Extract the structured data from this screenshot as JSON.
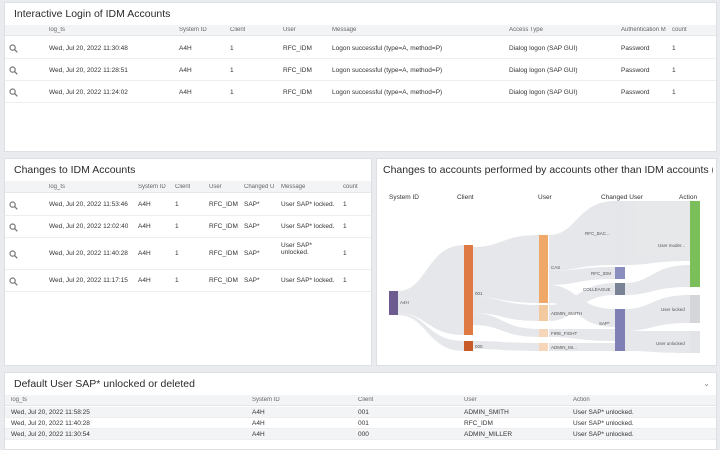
{
  "panel1": {
    "title": "Interactive Login of IDM Accounts",
    "headers": [
      "log_ts",
      "System ID",
      "Client",
      "User",
      "Message",
      "Access Type",
      "Authentication M",
      "count"
    ],
    "rows": [
      [
        "Wed, Jul 20, 2022 11:30:48",
        "A4H",
        "1",
        "RFC_IDM",
        "Logon successful (type=A, method=P)",
        "Dialog logon (SAP GUI)",
        "Password",
        "1"
      ],
      [
        "Wed, Jul 20, 2022 11:28:51",
        "A4H",
        "1",
        "RFC_IDM",
        "Logon successful (type=A, method=P)",
        "Dialog logon (SAP GUI)",
        "Password",
        "1"
      ],
      [
        "Wed, Jul 20, 2022 11:24:02",
        "A4H",
        "1",
        "RFC_IDM",
        "Logon successful (type=A, method=P)",
        "Dialog logon (SAP GUI)",
        "Password",
        "1"
      ]
    ]
  },
  "panel2": {
    "title": "Changes to IDM Accounts",
    "headers": [
      "log_ts",
      "System ID",
      "Client",
      "User",
      "Changed U",
      "Message",
      "count"
    ],
    "rows": [
      [
        "Wed, Jul 20, 2022 11:53:46",
        "A4H",
        "1",
        "RFC_IDM",
        "SAP*",
        "User SAP* locked.",
        "1"
      ],
      [
        "Wed, Jul 20, 2022 12:02:40",
        "A4H",
        "1",
        "RFC_IDM",
        "SAP*",
        "User SAP* locked.",
        "1"
      ],
      [
        "Wed, Jul 20, 2022 11:40:28",
        "A4H",
        "1",
        "RFC_IDM",
        "SAP*",
        "User SAP* unlocked.",
        "1"
      ],
      [
        "Wed, Jul 20, 2022 11:17:15",
        "A4H",
        "1",
        "RFC_IDM",
        "SAP*",
        "User SAP* locked.",
        "1"
      ]
    ]
  },
  "panel3": {
    "title": "Changes to accounts performed by accounts other than IDM accounts (Top...",
    "columns": [
      "System ID",
      "Client",
      "User",
      "Changed User",
      "Action"
    ],
    "nodes": {
      "a4h": "A4H",
      "c001": "001",
      "c000": "000",
      "cas": "CAS",
      "admin_smith": "ADMIN_SMITH",
      "fire_fight": "FIRE_FIGHT",
      "admin_mi": "ADMIN_MI...",
      "rfc_bac": "RFC_BAC...",
      "rfc_idm": "RFC_IDM",
      "colleague": "COLLEAGUE",
      "sap": "SAP*",
      "user_mod": "User moder...",
      "user_locked": "User locked",
      "user_unlocked": "User unlocked"
    },
    "colors": {
      "system": "#6b5b8e",
      "client": "#e07a45",
      "user": "#f0a868",
      "changed": "#8a8fbf",
      "action": "#7bbf5a",
      "gray": "#cfd2d6"
    }
  },
  "panel4": {
    "title": "Default User SAP* unlocked or deleted",
    "headers": [
      "log_ts",
      "System ID",
      "Client",
      "User",
      "Action"
    ],
    "rows": [
      [
        "Wed, Jul 20, 2022 11:58:25",
        "A4H",
        "001",
        "ADMIN_SMITH",
        "User SAP* unlocked."
      ],
      [
        "Wed, Jul 20, 2022 11:40:28",
        "A4H",
        "001",
        "RFC_IDM",
        "User SAP* unlocked."
      ],
      [
        "Wed, Jul 20, 2022 11:30:54",
        "A4H",
        "000",
        "ADMIN_MILLER",
        "User SAP* unlocked."
      ]
    ]
  }
}
